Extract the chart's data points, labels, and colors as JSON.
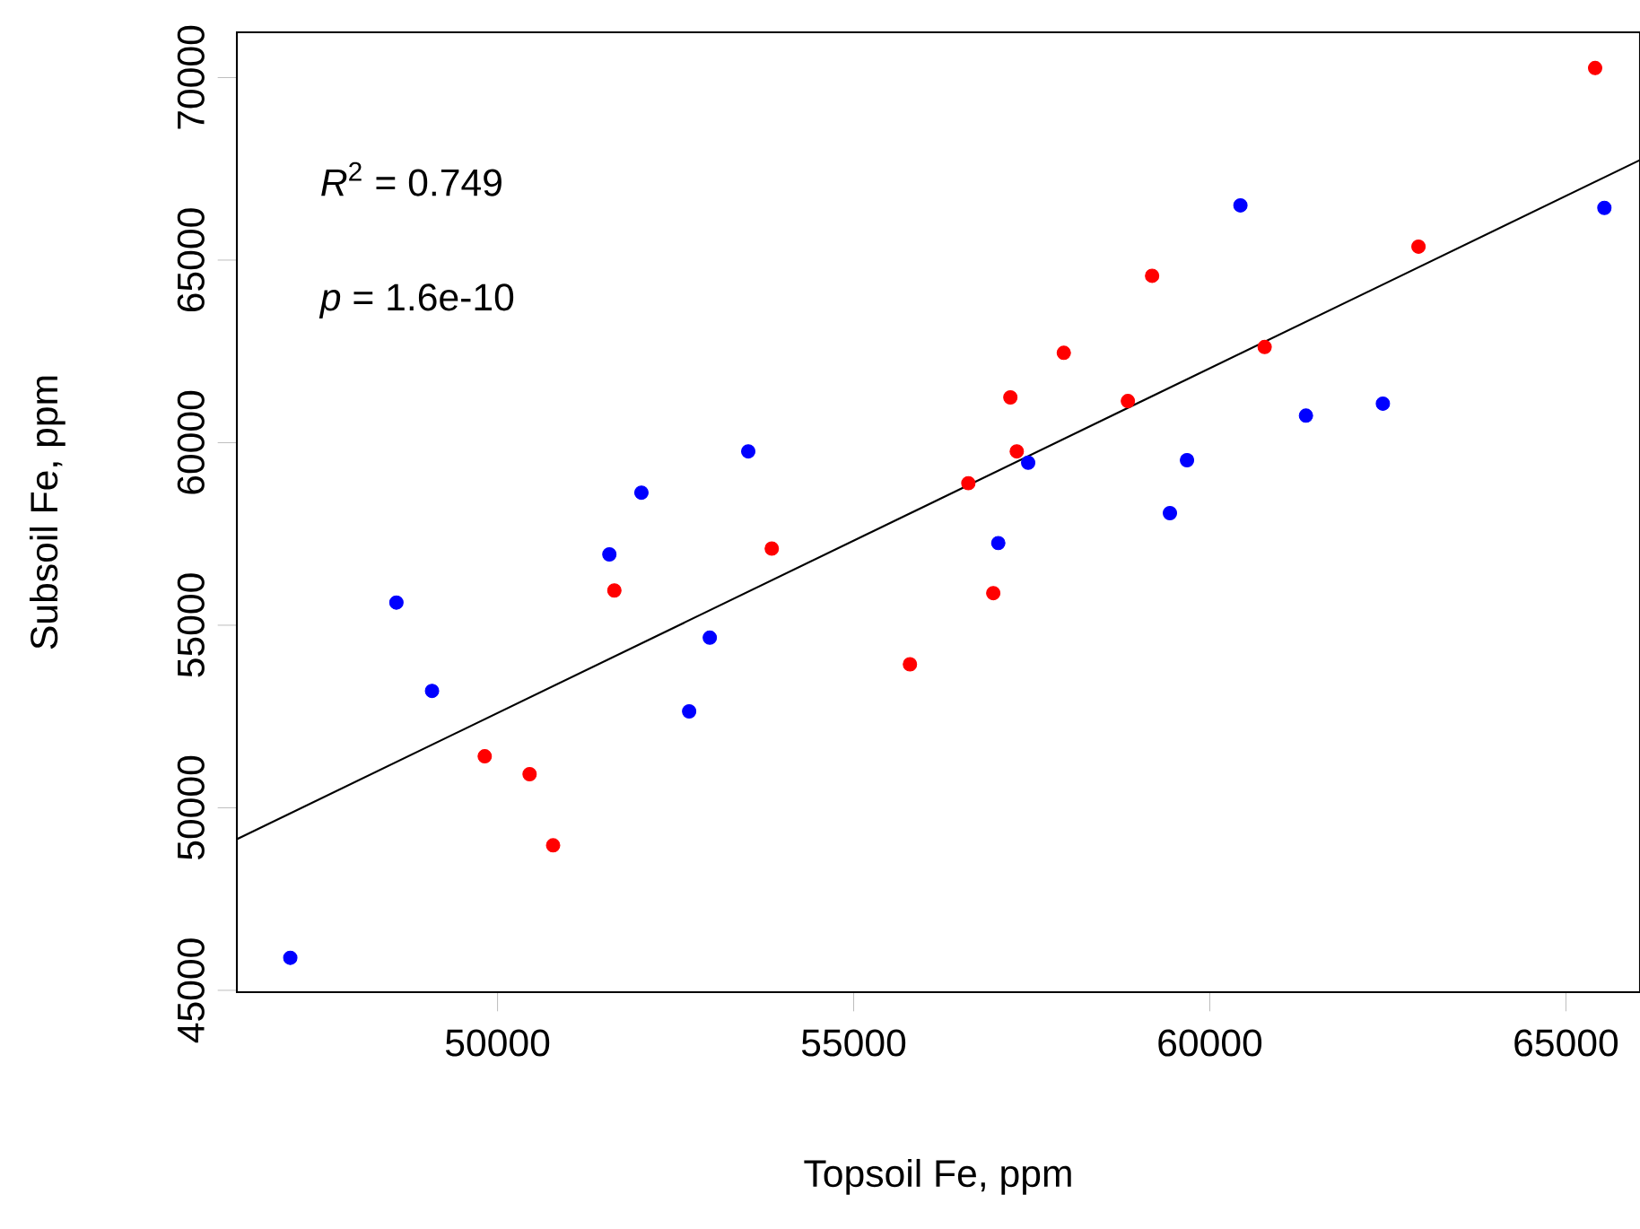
{
  "chart_data": {
    "type": "scatter",
    "xlabel": "Topsoil Fe, ppm",
    "ylabel": "Subsoil Fe, ppm",
    "annotations": [
      "*R*$^{2}$ = 0.749",
      "*p* = 1.6e-10"
    ],
    "xlim": [
      46340,
      66040
    ],
    "ylim": [
      44950,
      71240
    ],
    "xticks": [
      50000,
      55000,
      60000,
      65000
    ],
    "yticks": [
      45000,
      50000,
      55000,
      60000,
      65000,
      70000
    ],
    "marker": "circle",
    "grid": false,
    "series": [
      {
        "color": "#0000ff",
        "x": [
          47090,
          48580,
          49080,
          51570,
          52020,
          52690,
          52980,
          53520,
          57030,
          57450,
          59440,
          59680,
          60430,
          61350,
          62430,
          65540
        ],
        "values": [
          45890,
          55620,
          53200,
          56940,
          58630,
          52640,
          54660,
          59760,
          57250,
          59450,
          58070,
          59520,
          66500,
          60740,
          61070,
          66430
        ]
      },
      {
        "color": "#ff0000",
        "x": [
          49820,
          50450,
          50780,
          51640,
          53850,
          55790,
          56960,
          56610,
          57290,
          57200,
          57950,
          58850,
          59190,
          60770,
          62930,
          65410
        ],
        "values": [
          51410,
          50920,
          48970,
          55950,
          57100,
          53930,
          55880,
          58890,
          59760,
          61240,
          62460,
          61140,
          64570,
          62620,
          65370,
          70260
        ]
      },
      {
        "type": "line",
        "color": "#000000",
        "marker": "none",
        "x": [
          46340,
          66040
        ],
        "values": [
          49140,
          67740
        ]
      }
    ]
  }
}
